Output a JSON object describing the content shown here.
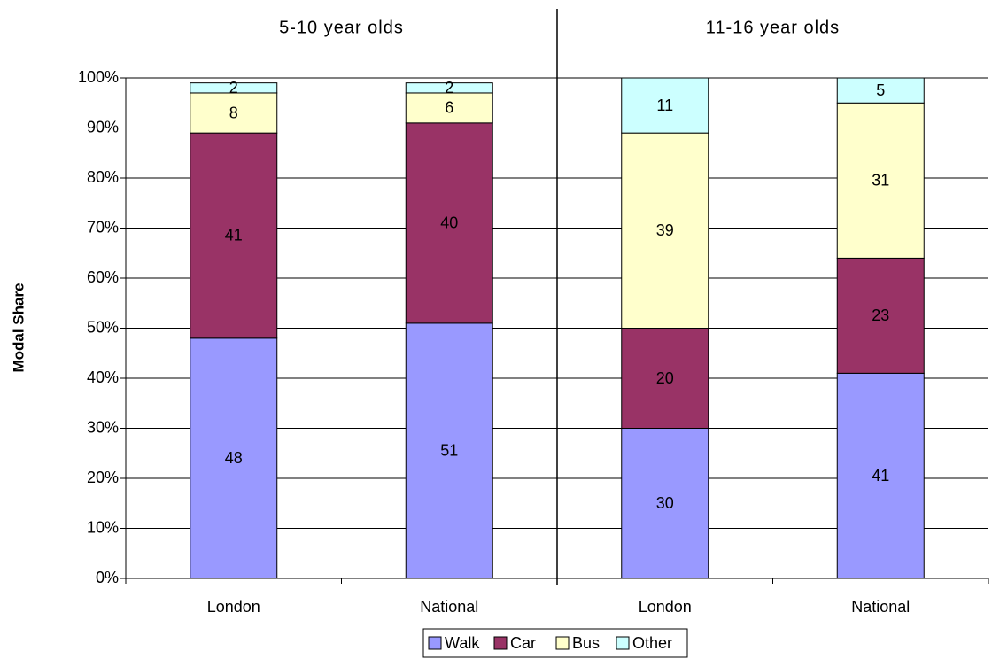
{
  "chart_data": {
    "type": "stacked_bar",
    "y_label": "Modal Share",
    "groups": [
      "5-10 year olds",
      "11-16 year olds"
    ],
    "categories": [
      "London",
      "National",
      "London",
      "National"
    ],
    "series": [
      {
        "name": "Walk",
        "color": "#9999ff",
        "values": [
          48,
          51,
          30,
          41
        ]
      },
      {
        "name": "Car",
        "color": "#993366",
        "values": [
          41,
          40,
          20,
          23
        ]
      },
      {
        "name": "Bus",
        "color": "#ffffcc",
        "values": [
          8,
          6,
          39,
          31
        ]
      },
      {
        "name": "Other",
        "color": "#ccffff",
        "values": [
          2,
          2,
          11,
          5
        ]
      }
    ],
    "ylim": [
      0,
      100
    ],
    "yticks": [
      {
        "value": 0,
        "label": "0%"
      },
      {
        "value": 10,
        "label": "10%"
      },
      {
        "value": 20,
        "label": "20%"
      },
      {
        "value": 30,
        "label": "30%"
      },
      {
        "value": 40,
        "label": "40%"
      },
      {
        "value": 50,
        "label": "50%"
      },
      {
        "value": 60,
        "label": "60%"
      },
      {
        "value": 70,
        "label": "70%"
      },
      {
        "value": 80,
        "label": "80%"
      },
      {
        "value": 90,
        "label": "90%"
      },
      {
        "value": 100,
        "label": "100%"
      }
    ],
    "grid": true,
    "legend": "bottom"
  }
}
